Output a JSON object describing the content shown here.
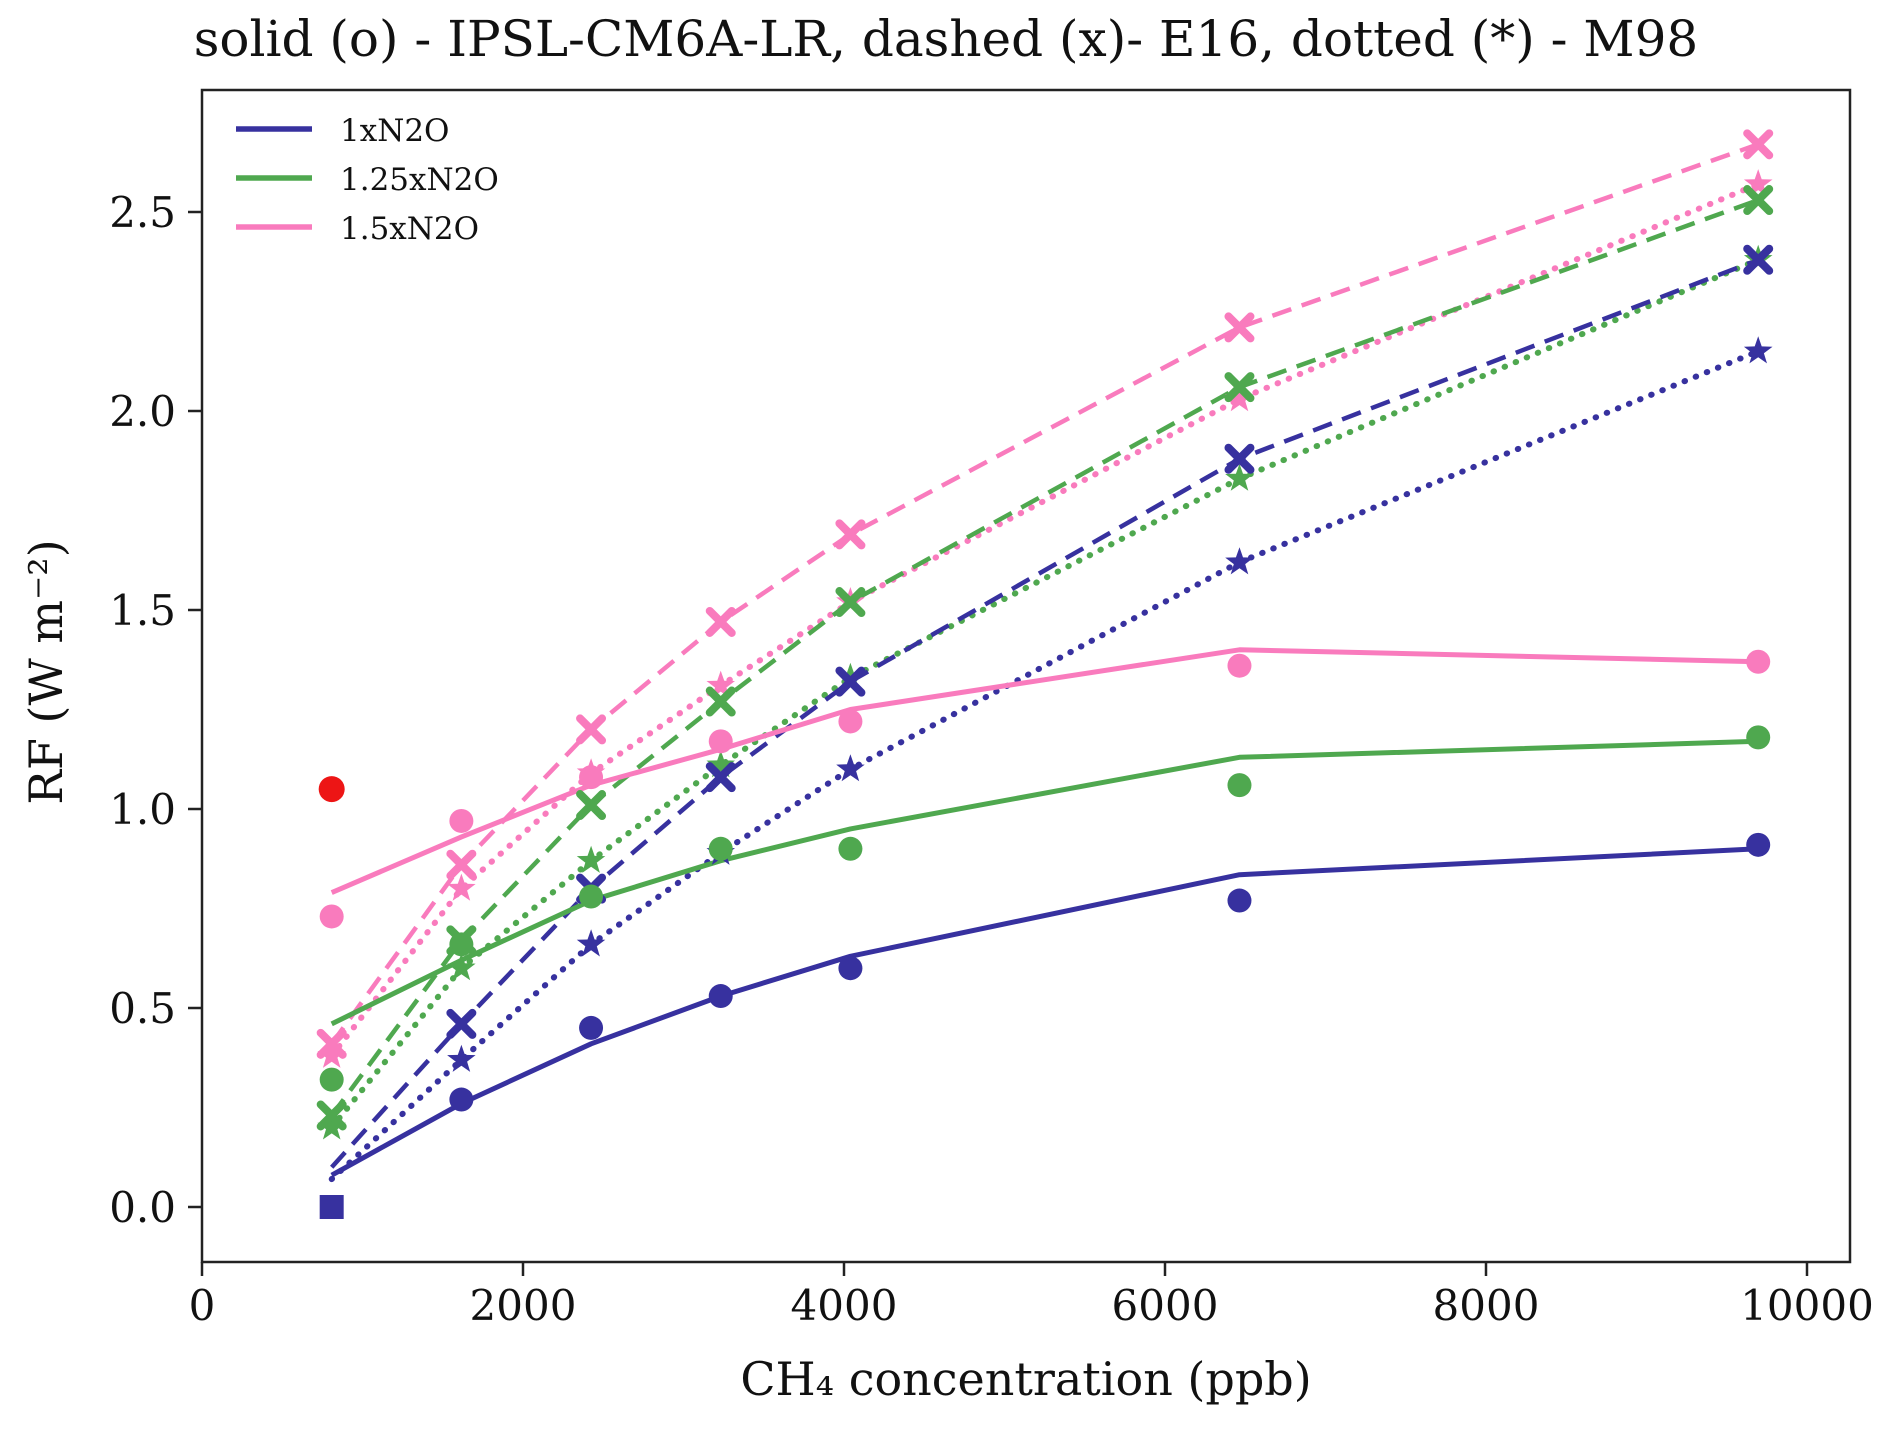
{
  "figure": {
    "background": "#ffffff"
  },
  "chart_data": {
    "type": "line",
    "title": "solid (o) - IPSL-CM6A-LR, dashed (x)- E16, dotted (*) - M98",
    "xlabel": "CH₄ concentration (ppb)",
    "ylabel": "RF (W m⁻²)",
    "xlim": [
      0,
      10270
    ],
    "ylim": [
      -0.14,
      2.81
    ],
    "grid": false,
    "x_ticks": [
      {
        "value": 0,
        "label": "0"
      },
      {
        "value": 2000,
        "label": "2000"
      },
      {
        "value": 4000,
        "label": "4000"
      },
      {
        "value": 6000,
        "label": "6000"
      },
      {
        "value": 8000,
        "label": "8000"
      },
      {
        "value": 10000,
        "label": "10000"
      }
    ],
    "y_ticks": [
      {
        "value": 0.0,
        "label": "0.0"
      },
      {
        "value": 0.5,
        "label": "0.5"
      },
      {
        "value": 1.0,
        "label": "1.0"
      },
      {
        "value": 1.5,
        "label": "1.5"
      },
      {
        "value": 2.0,
        "label": "2.0"
      },
      {
        "value": 2.5,
        "label": "2.5"
      }
    ],
    "legend": {
      "position": "upper-left",
      "entries": [
        {
          "label": "1xN2O",
          "color": "#37319f"
        },
        {
          "label": "1.25xN2O",
          "color": "#4fa84f"
        },
        {
          "label": "1.5xN2O",
          "color": "#f97bbd"
        }
      ]
    },
    "colors": {
      "navy": "#37319f",
      "green": "#4fa84f",
      "pink": "#f97bbd",
      "red": "#ed1515",
      "axis": "#222222"
    },
    "x": [
      808,
      1616,
      2424,
      3232,
      4040,
      6464,
      9696
    ],
    "series": [
      {
        "id": "m98-1x",
        "model": "M98",
        "n2o": "1xN2O",
        "color": "#37319f",
        "linestyle": "dotted",
        "marker": "star",
        "markers": [
          null,
          0.37,
          0.66,
          0.89,
          1.1,
          1.62,
          2.15
        ],
        "line": [
          0.07,
          0.37,
          0.66,
          0.89,
          1.1,
          1.62,
          2.15
        ]
      },
      {
        "id": "m98-1.25x",
        "model": "M98",
        "n2o": "1.25xN2O",
        "color": "#4fa84f",
        "linestyle": "dotted",
        "marker": "star",
        "markers": [
          0.2,
          0.6,
          0.87,
          1.11,
          1.33,
          1.83,
          2.38
        ],
        "line": [
          0.2,
          0.6,
          0.87,
          1.11,
          1.33,
          1.83,
          2.38
        ]
      },
      {
        "id": "m98-1.5x",
        "model": "M98",
        "n2o": "1.5xN2O",
        "color": "#f97bbd",
        "linestyle": "dotted",
        "marker": "star",
        "markers": [
          0.38,
          0.8,
          1.09,
          1.31,
          1.52,
          2.03,
          2.57
        ],
        "line": [
          0.38,
          0.8,
          1.09,
          1.31,
          1.52,
          2.03,
          2.57
        ]
      },
      {
        "id": "e16-1x",
        "model": "E16",
        "n2o": "1xN2O",
        "color": "#37319f",
        "linestyle": "dashed",
        "marker": "x",
        "markers": [
          null,
          0.46,
          0.8,
          1.08,
          1.32,
          1.88,
          2.38
        ],
        "line": [
          0.1,
          0.46,
          0.8,
          1.08,
          1.32,
          1.88,
          2.38
        ]
      },
      {
        "id": "e16-1.25x",
        "model": "E16",
        "n2o": "1.25xN2O",
        "color": "#4fa84f",
        "linestyle": "dashed",
        "marker": "x",
        "markers": [
          0.23,
          0.67,
          1.01,
          1.27,
          1.52,
          2.06,
          2.53
        ],
        "line": [
          0.23,
          0.67,
          1.01,
          1.27,
          1.52,
          2.06,
          2.53
        ]
      },
      {
        "id": "e16-1.5x",
        "model": "E16",
        "n2o": "1.5xN2O",
        "color": "#f97bbd",
        "linestyle": "dashed",
        "marker": "x",
        "markers": [
          0.41,
          0.86,
          1.2,
          1.47,
          1.69,
          2.21,
          2.67
        ],
        "line": [
          0.41,
          0.86,
          1.2,
          1.47,
          1.69,
          2.21,
          2.67
        ]
      },
      {
        "id": "ipsl-1x",
        "model": "IPSL-CM6A-LR",
        "n2o": "1xN2O",
        "color": "#37319f",
        "linestyle": "solid",
        "marker": "circle",
        "first_marker": "square",
        "markers": [
          0.0,
          0.27,
          0.45,
          0.53,
          0.6,
          0.77,
          0.91
        ],
        "line": [
          0.08,
          0.26,
          0.41,
          0.53,
          0.63,
          0.835,
          0.9
        ]
      },
      {
        "id": "ipsl-1.25x",
        "model": "IPSL-CM6A-LR",
        "n2o": "1.25xN2O",
        "color": "#4fa84f",
        "linestyle": "solid",
        "marker": "circle",
        "markers": [
          0.32,
          0.66,
          0.78,
          0.9,
          0.9,
          1.06,
          1.18
        ],
        "line": [
          0.46,
          0.62,
          0.77,
          0.87,
          0.95,
          1.13,
          1.17
        ]
      },
      {
        "id": "ipsl-1.5x",
        "model": "IPSL-CM6A-LR",
        "n2o": "1.5xN2O",
        "color": "#f97bbd",
        "linestyle": "solid",
        "marker": "circle",
        "markers": [
          0.73,
          0.97,
          1.08,
          1.17,
          1.22,
          1.36,
          1.37
        ],
        "line": [
          0.79,
          0.93,
          1.06,
          1.15,
          1.25,
          1.4,
          1.37
        ]
      }
    ],
    "extra_points": [
      {
        "id": "red-point",
        "x": 808,
        "y": 1.05,
        "color": "#ed1515",
        "marker": "circle"
      }
    ]
  }
}
